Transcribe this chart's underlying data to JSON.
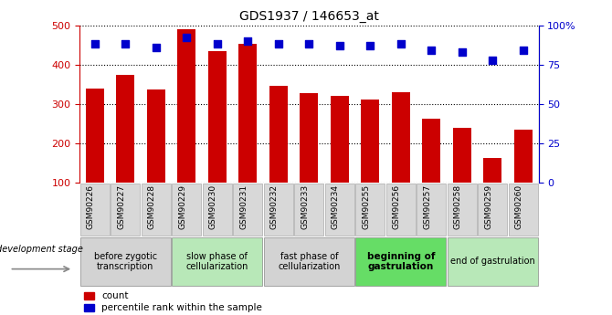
{
  "title": "GDS1937 / 146653_at",
  "samples": [
    "GSM90226",
    "GSM90227",
    "GSM90228",
    "GSM90229",
    "GSM90230",
    "GSM90231",
    "GSM90232",
    "GSM90233",
    "GSM90234",
    "GSM90255",
    "GSM90256",
    "GSM90257",
    "GSM90258",
    "GSM90259",
    "GSM90260"
  ],
  "counts": [
    338,
    373,
    337,
    490,
    435,
    453,
    347,
    327,
    320,
    312,
    330,
    263,
    240,
    163,
    235
  ],
  "percentile": [
    88,
    88,
    86,
    92,
    88,
    90,
    88,
    88,
    87,
    87,
    88,
    84,
    83,
    78,
    84
  ],
  "bar_color": "#cc0000",
  "dot_color": "#0000cc",
  "left_axis_color": "#cc0000",
  "right_axis_color": "#0000cc",
  "ylim_left": [
    100,
    500
  ],
  "ylim_right": [
    0,
    100
  ],
  "left_yticks": [
    100,
    200,
    300,
    400,
    500
  ],
  "right_yticks": [
    0,
    25,
    50,
    75,
    100
  ],
  "right_yticklabels": [
    "0",
    "25",
    "50",
    "75",
    "100%"
  ],
  "stages": [
    {
      "label": "before zygotic\ntranscription",
      "samples": [
        "GSM90226",
        "GSM90227",
        "GSM90228"
      ],
      "color": "#d3d3d3",
      "bold": false
    },
    {
      "label": "slow phase of\ncellularization",
      "samples": [
        "GSM90229",
        "GSM90230",
        "GSM90231"
      ],
      "color": "#b8e8b8",
      "bold": false
    },
    {
      "label": "fast phase of\ncellularization",
      "samples": [
        "GSM90232",
        "GSM90233",
        "GSM90234"
      ],
      "color": "#d3d3d3",
      "bold": false
    },
    {
      "label": "beginning of\ngastrulation",
      "samples": [
        "GSM90255",
        "GSM90256",
        "GSM90257"
      ],
      "color": "#66dd66",
      "bold": true
    },
    {
      "label": "end of gastrulation",
      "samples": [
        "GSM90258",
        "GSM90259",
        "GSM90260"
      ],
      "color": "#b8e8b8",
      "bold": false
    }
  ],
  "legend_count_label": "count",
  "legend_pct_label": "percentile rank within the sample",
  "dev_stage_label": "development stage",
  "dot_size": 40,
  "bar_bottom": 100,
  "sample_cell_color": "#d8d8d8"
}
